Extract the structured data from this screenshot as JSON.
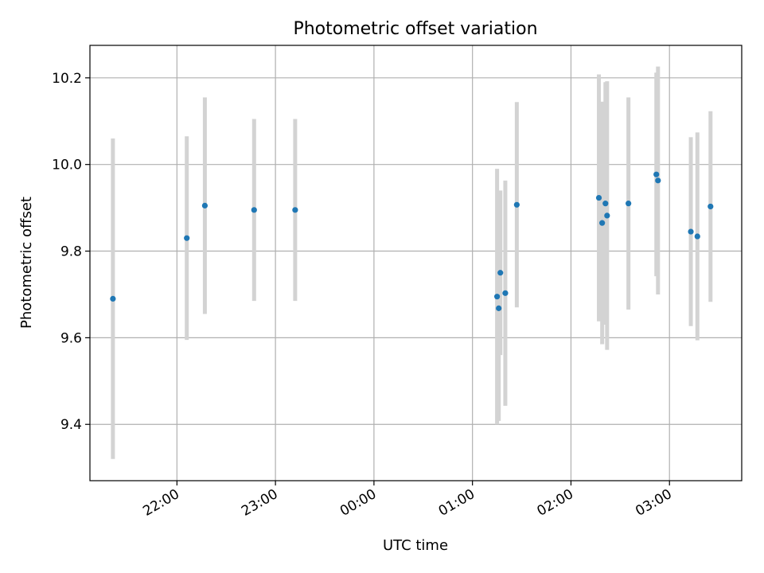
{
  "chart_data": {
    "type": "scatter",
    "title": "Photometric offset variation",
    "xlabel": "UTC time",
    "ylabel": "Photometric offset",
    "grid": true,
    "colors": {
      "points": "#1f77b4",
      "errorbars": "#d3d3d3",
      "grid": "#b0b0b0"
    },
    "xlim": [
      "21:07",
      "03:44"
    ],
    "ylim": [
      9.27,
      10.275
    ],
    "x_ticks": [
      "22:00",
      "23:00",
      "00:00",
      "01:00",
      "02:00",
      "03:00"
    ],
    "y_ticks": [
      "9.4",
      "9.6",
      "9.8",
      "10.0",
      "10.2"
    ],
    "series": [
      {
        "points": [
          {
            "x": "21:21",
            "y": 9.69,
            "err": 0.37
          },
          {
            "x": "22:06",
            "y": 9.83,
            "err": 0.235
          },
          {
            "x": "22:17",
            "y": 9.905,
            "err": 0.25
          },
          {
            "x": "22:47",
            "y": 9.895,
            "err": 0.21
          },
          {
            "x": "23:12",
            "y": 9.895,
            "err": 0.21
          },
          {
            "x": "01:15",
            "y": 9.695,
            "err": 0.295
          },
          {
            "x": "01:16",
            "y": 9.668,
            "err": 0.26
          },
          {
            "x": "01:17",
            "y": 9.75,
            "err": 0.19
          },
          {
            "x": "01:20",
            "y": 9.703,
            "err": 0.26
          },
          {
            "x": "01:27",
            "y": 9.907,
            "err": 0.237
          },
          {
            "x": "02:17",
            "y": 9.923,
            "err": 0.285
          },
          {
            "x": "02:19",
            "y": 9.865,
            "err": 0.28
          },
          {
            "x": "02:21",
            "y": 9.91,
            "err": 0.28
          },
          {
            "x": "02:22",
            "y": 9.882,
            "err": 0.31
          },
          {
            "x": "02:35",
            "y": 9.91,
            "err": 0.245
          },
          {
            "x": "02:52",
            "y": 9.977,
            "err": 0.235
          },
          {
            "x": "02:53",
            "y": 9.963,
            "err": 0.263
          },
          {
            "x": "03:13",
            "y": 9.845,
            "err": 0.218
          },
          {
            "x": "03:17",
            "y": 9.834,
            "err": 0.24
          },
          {
            "x": "03:25",
            "y": 9.903,
            "err": 0.22
          }
        ]
      }
    ]
  }
}
